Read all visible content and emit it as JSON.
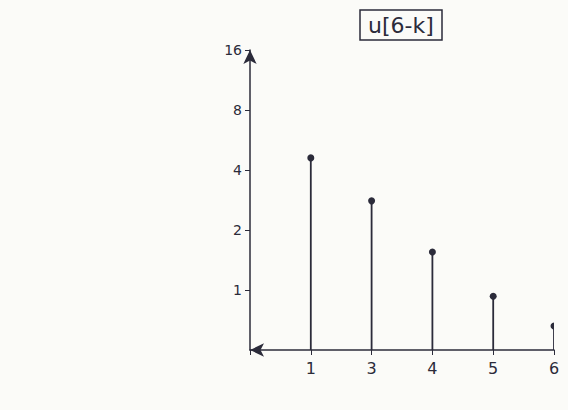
{
  "chart_data": {
    "type": "stem",
    "title": "u[6-k]",
    "categories": [
      null,
      "1",
      "3",
      "4",
      "5",
      "6"
    ],
    "values": [
      null,
      4.6,
      2.8,
      1.55,
      0.93,
      0.66
    ],
    "color": "#2b2b3a",
    "marker": "circle",
    "ylim": [
      0.5,
      16
    ],
    "yticks": [
      1,
      2,
      4,
      8,
      16
    ],
    "log": "y"
  }
}
